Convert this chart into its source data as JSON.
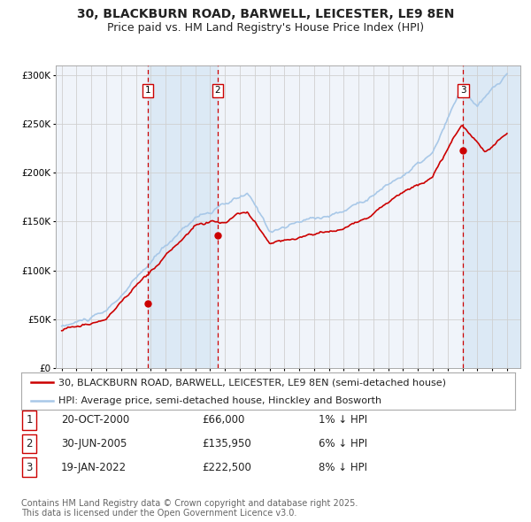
{
  "title_line1": "30, BLACKBURN ROAD, BARWELL, LEICESTER, LE9 8EN",
  "title_line2": "Price paid vs. HM Land Registry's House Price Index (HPI)",
  "ylim": [
    0,
    310000
  ],
  "yticks": [
    0,
    50000,
    100000,
    150000,
    200000,
    250000,
    300000
  ],
  "xstart_year": 1995,
  "xend_year": 2025,
  "hpi_color": "#a8c8e8",
  "price_color": "#cc0000",
  "marker_color": "#cc0000",
  "dashed_line_color": "#cc0000",
  "shade_color": "#dce9f5",
  "grid_color": "#cccccc",
  "bg_color": "#f0f4fa",
  "legend_bg": "#ffffff",
  "legend_label_red": "30, BLACKBURN ROAD, BARWELL, LEICESTER, LE9 8EN (semi-detached house)",
  "legend_label_blue": "HPI: Average price, semi-detached house, Hinckley and Bosworth",
  "transactions": [
    {
      "num": 1,
      "date": "20-OCT-2000",
      "price": 66000,
      "pct": "1%",
      "direction": "↓"
    },
    {
      "num": 2,
      "date": "30-JUN-2005",
      "price": 135950,
      "pct": "6%",
      "direction": "↓"
    },
    {
      "num": 3,
      "date": "19-JAN-2022",
      "price": 222500,
      "pct": "8%",
      "direction": "↓"
    }
  ],
  "transaction_years": [
    2000.8,
    2005.5,
    2022.05
  ],
  "transaction_prices": [
    66000,
    135950,
    222500
  ],
  "footer_text": "Contains HM Land Registry data © Crown copyright and database right 2025.\nThis data is licensed under the Open Government Licence v3.0.",
  "title_fontsize": 10,
  "subtitle_fontsize": 9,
  "tick_fontsize": 7.5,
  "legend_fontsize": 8,
  "table_fontsize": 8.5,
  "footer_fontsize": 7
}
